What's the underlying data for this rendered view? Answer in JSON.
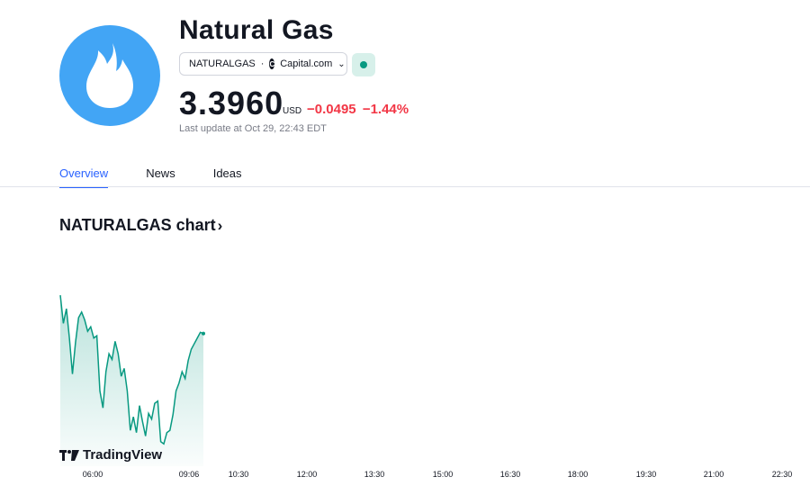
{
  "header": {
    "title": "Natural Gas",
    "symbol": "NATURALGAS",
    "separator": "·",
    "exchange": "Capital.com",
    "price": "3.3960",
    "currency": "USD",
    "change": "−0.0495",
    "change_percent": "−1.44%",
    "last_update": "Last update at Oct 29, 22:43 EDT",
    "market_status": "open"
  },
  "tabs": [
    {
      "label": "Overview",
      "active": true
    },
    {
      "label": "News",
      "active": false
    },
    {
      "label": "Ideas",
      "active": false
    }
  ],
  "chart_section": {
    "heading": "NATURALGAS chart",
    "heading_arrow": "›",
    "watermark": "TradingView"
  },
  "colors": {
    "accent": "#2962ff",
    "negative": "#f23645",
    "line": "#089981",
    "logo_bg": "#42a5f5"
  },
  "chart_data": {
    "type": "area",
    "x_ticks": [
      "06:00",
      "09:06",
      "10:30",
      "12:00",
      "13:30",
      "15:00",
      "16:30",
      "18:00",
      "19:30",
      "21:00",
      "22:30"
    ],
    "series": [
      {
        "values": [
          3.43,
          3.405,
          3.418,
          3.392,
          3.36,
          3.388,
          3.41,
          3.415,
          3.408,
          3.398,
          3.402,
          3.392,
          3.394,
          3.345,
          3.33,
          3.362,
          3.378,
          3.373,
          3.389,
          3.378,
          3.358,
          3.365,
          3.345,
          3.31,
          3.322,
          3.308,
          3.332,
          3.318,
          3.305,
          3.325,
          3.32,
          3.334,
          3.336,
          3.3,
          3.298,
          3.308,
          3.31,
          3.324,
          3.345,
          3.352,
          3.362,
          3.356,
          3.372,
          3.382,
          3.387,
          3.392,
          3.397,
          3.396
        ]
      }
    ]
  }
}
